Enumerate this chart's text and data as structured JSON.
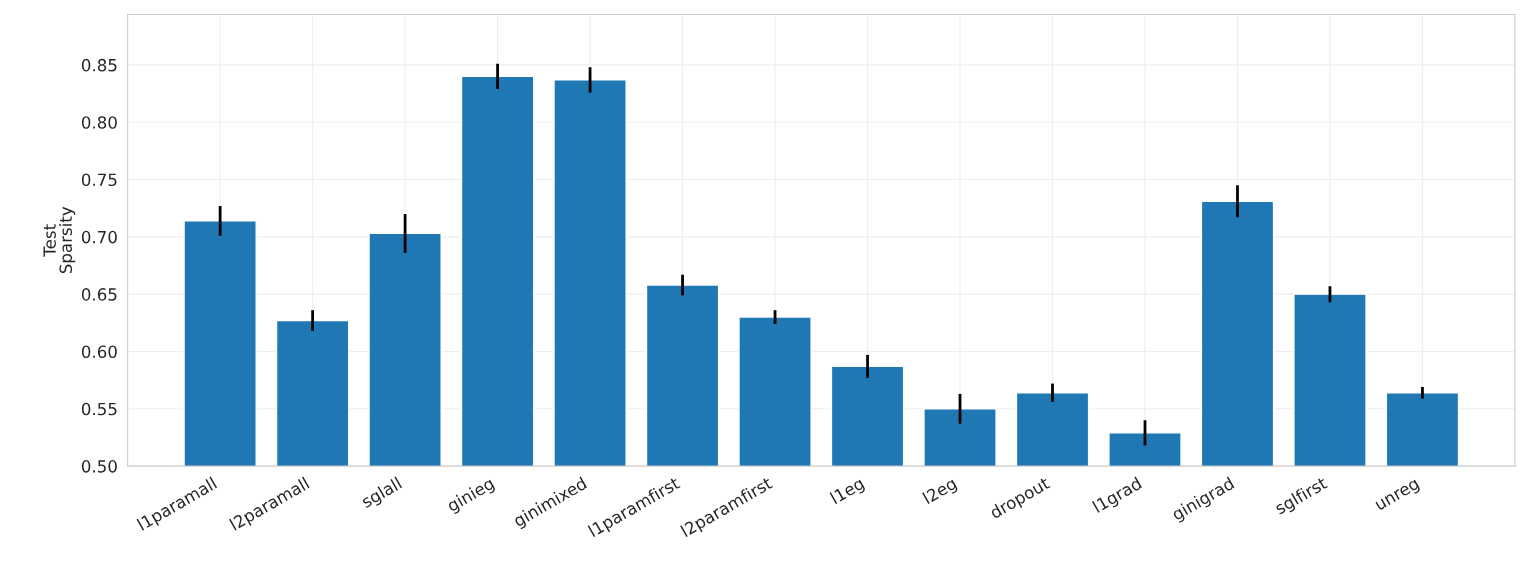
{
  "chart_data": {
    "type": "bar",
    "ylabel": "Test\nSparsity",
    "categories": [
      "l1paramall",
      "l2paramall",
      "sglall",
      "ginieg",
      "ginimixed",
      "l1paramfirst",
      "l2paramfirst",
      "l1eg",
      "l2eg",
      "dropout",
      "l1grad",
      "ginigrad",
      "sglfirst",
      "unreg"
    ],
    "values": [
      0.714,
      0.627,
      0.703,
      0.84,
      0.837,
      0.658,
      0.63,
      0.587,
      0.55,
      0.564,
      0.529,
      0.731,
      0.65,
      0.564
    ],
    "errors": [
      0.013,
      0.009,
      0.017,
      0.011,
      0.011,
      0.009,
      0.006,
      0.01,
      0.013,
      0.008,
      0.011,
      0.014,
      0.007,
      0.005
    ],
    "color": "#1f77b4",
    "ylim": [
      0.5,
      0.894
    ],
    "yticks": [
      {
        "value": 0.5,
        "label": "0.50"
      },
      {
        "value": 0.55,
        "label": "0.55"
      },
      {
        "value": 0.6,
        "label": "0.60"
      },
      {
        "value": 0.65,
        "label": "0.65"
      },
      {
        "value": 0.7,
        "label": "0.70"
      },
      {
        "value": 0.75,
        "label": "0.75"
      },
      {
        "value": 0.8,
        "label": "0.80"
      },
      {
        "value": 0.85,
        "label": "0.85"
      }
    ],
    "grid": true
  }
}
